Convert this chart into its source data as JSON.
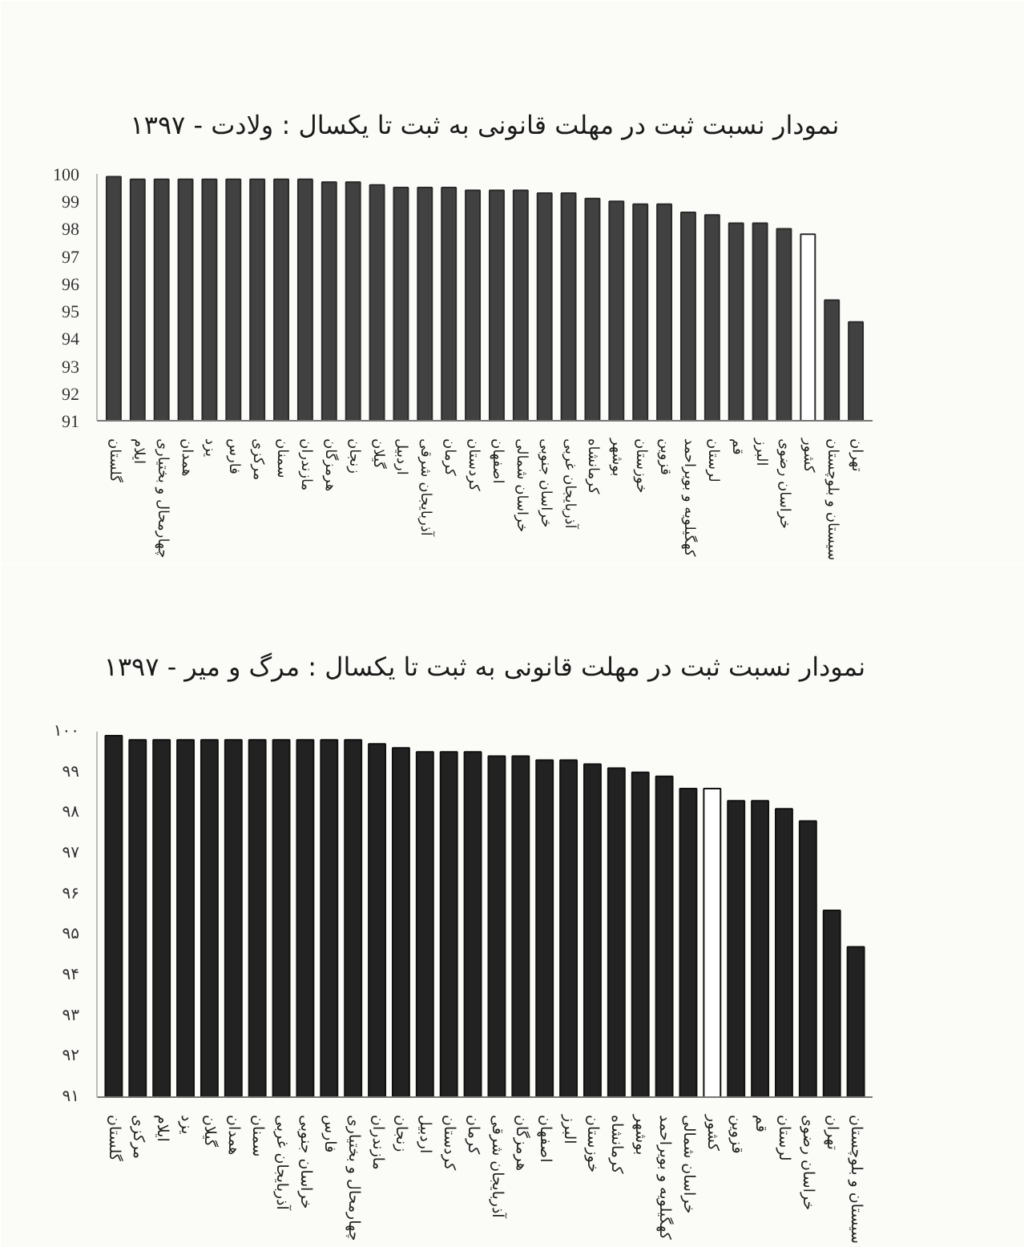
{
  "chart_data": [
    {
      "type": "bar",
      "title": "نمودار نسبت ثبت در مهلت قانونی به ثبت تا یکسال : ولادت - ۱۳۹۷",
      "categories": [
        "گلستان",
        "ایلام",
        "چهارمحال و بختیاری",
        "همدان",
        "یزد",
        "فارس",
        "مرکزی",
        "سمنان",
        "مازندران",
        "هرمزگان",
        "زنجان",
        "گیلان",
        "اردبیل",
        "آذربایجان شرقی",
        "کرمان",
        "کردستان",
        "اصفهان",
        "خراسان شمالی",
        "خراسان جنوبی",
        "آذربایجان غربی",
        "کرمانشاه",
        "بوشهر",
        "خوزستان",
        "قزوین",
        "کهگیلویه و بویراحمد",
        "لرستان",
        "قم",
        "البرز",
        "خراسان رضوی",
        "کشور",
        "سیستان و بلوچستان",
        "تهران"
      ],
      "values": [
        99.9,
        99.8,
        99.8,
        99.8,
        99.8,
        99.8,
        99.8,
        99.8,
        99.8,
        99.7,
        99.7,
        99.6,
        99.5,
        99.5,
        99.5,
        99.4,
        99.4,
        99.4,
        99.3,
        99.3,
        99.1,
        99.0,
        98.9,
        98.9,
        98.6,
        98.5,
        98.2,
        98.2,
        98.0,
        97.8,
        95.4,
        94.6
      ],
      "colors": [
        "#414141",
        "#414141",
        "#414141",
        "#414141",
        "#414141",
        "#414141",
        "#414141",
        "#414141",
        "#414141",
        "#414141",
        "#414141",
        "#414141",
        "#414141",
        "#414141",
        "#414141",
        "#414141",
        "#414141",
        "#414141",
        "#414141",
        "#414141",
        "#414141",
        "#414141",
        "#414141",
        "#414141",
        "#414141",
        "#414141",
        "#414141",
        "#414141",
        "#414141",
        "#ffffff",
        "#414141",
        "#414141"
      ],
      "ylim": [
        91,
        100
      ],
      "yticks": [
        91,
        92,
        93,
        94,
        95,
        96,
        97,
        98,
        99,
        100
      ]
    },
    {
      "type": "bar",
      "title": "نمودار نسبت ثبت در مهلت قانونی به ثبت تا یکسال : مرگ و میر - ۱۳۹۷",
      "categories": [
        "گلستان",
        "مرکزی",
        "ایلام",
        "یزد",
        "گیلان",
        "همدان",
        "سمنان",
        "آذربایجان غربی",
        "خراسان جنوبی",
        "فارس",
        "چهارمحال و بختیاری",
        "مازندران",
        "زنجان",
        "اردبیل",
        "کردستان",
        "کرمان",
        "آذربایجان شرقی",
        "هرمزگان",
        "اصفهان",
        "البرز",
        "خوزستان",
        "کرمانشاه",
        "بوشهر",
        "کهگیلویه و بویراحمد",
        "خراسان شمالی",
        "کشور",
        "قزوین",
        "قم",
        "لرستان",
        "خراسان رضوی",
        "تهران",
        "سیستان و بلوچستان"
      ],
      "values": [
        99.9,
        99.8,
        99.8,
        99.8,
        99.8,
        99.8,
        99.8,
        99.8,
        99.8,
        99.8,
        99.8,
        99.7,
        99.6,
        99.5,
        99.5,
        99.5,
        99.4,
        99.4,
        99.3,
        99.3,
        99.2,
        99.1,
        99.0,
        98.9,
        98.6,
        98.6,
        98.3,
        98.3,
        98.1,
        97.8,
        95.6,
        94.7
      ],
      "colors": [
        "#222222",
        "#222222",
        "#222222",
        "#222222",
        "#222222",
        "#222222",
        "#222222",
        "#222222",
        "#222222",
        "#222222",
        "#222222",
        "#222222",
        "#222222",
        "#222222",
        "#222222",
        "#222222",
        "#222222",
        "#222222",
        "#222222",
        "#222222",
        "#222222",
        "#222222",
        "#222222",
        "#222222",
        "#222222",
        "#ffffff",
        "#222222",
        "#222222",
        "#222222",
        "#222222",
        "#222222",
        "#222222"
      ],
      "ylim": [
        91,
        100
      ],
      "yticks": [
        {
          "value": 91,
          "label": "۹۱"
        },
        {
          "value": 92,
          "label": "۹۲"
        },
        {
          "value": 93,
          "label": "۹۳"
        },
        {
          "value": 94,
          "label": "۹۴"
        },
        {
          "value": 95,
          "label": "۹۵"
        },
        {
          "value": 96,
          "label": "۹۶"
        },
        {
          "value": 97,
          "label": "۹۷"
        },
        {
          "value": 98,
          "label": "۹۸"
        },
        {
          "value": 99,
          "label": "۹۹"
        },
        {
          "value": 100,
          "label": "۱۰۰"
        }
      ]
    }
  ]
}
